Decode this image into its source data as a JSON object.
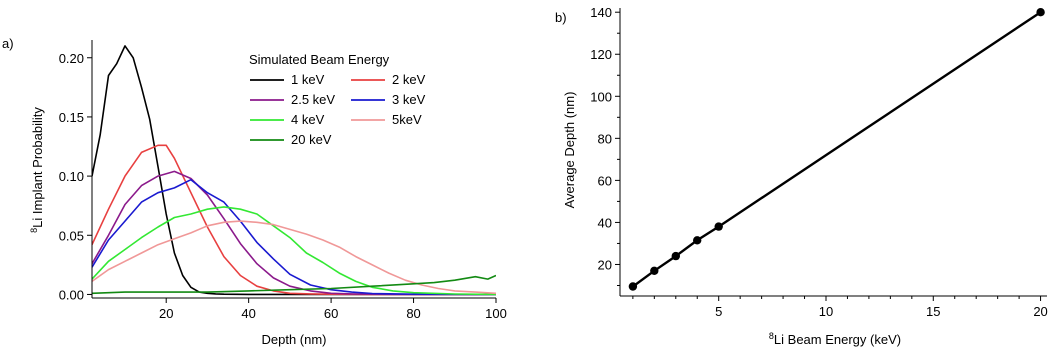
{
  "chart_data": [
    {
      "type": "line",
      "panel_label": "a)",
      "xlabel": "Depth (nm)",
      "ylabel": "Li Implant Probability",
      "ylabel_superscript": "8",
      "xlim": [
        2,
        100
      ],
      "ylim": [
        -0.003,
        0.215
      ],
      "xticks": [
        "20",
        "40",
        "60",
        "80",
        "100"
      ],
      "yticks": [
        "0.00",
        "0.05",
        "0.10",
        "0.15",
        "0.20"
      ],
      "legend_title": "Simulated Beam Energy",
      "legend_position": "top-right",
      "series": [
        {
          "name": "1 keV",
          "color": "#000000",
          "x": [
            2,
            4,
            6,
            8,
            10,
            12,
            14,
            16,
            18,
            20,
            22,
            24,
            26,
            28,
            30,
            32,
            34,
            40,
            50,
            60,
            80,
            100
          ],
          "y": [
            0.1,
            0.135,
            0.185,
            0.195,
            0.21,
            0.2,
            0.175,
            0.148,
            0.108,
            0.068,
            0.035,
            0.016,
            0.006,
            0.002,
            0.001,
            0.0005,
            0.0002,
            0.0,
            0.0,
            0.0,
            0.0,
            0.0
          ]
        },
        {
          "name": "2 keV",
          "color": "#e84040",
          "x": [
            2,
            6,
            10,
            14,
            18,
            20,
            22,
            26,
            30,
            34,
            38,
            42,
            46,
            50,
            55,
            60,
            70,
            80,
            100
          ],
          "y": [
            0.042,
            0.072,
            0.1,
            0.12,
            0.126,
            0.126,
            0.115,
            0.086,
            0.057,
            0.032,
            0.016,
            0.007,
            0.003,
            0.001,
            0.0005,
            0.0002,
            0.0,
            0.0,
            0.0
          ]
        },
        {
          "name": "2.5 keV",
          "color": "#8b1a8b",
          "x": [
            2,
            6,
            10,
            14,
            18,
            22,
            26,
            30,
            34,
            38,
            42,
            46,
            50,
            55,
            60,
            65,
            70,
            80,
            100
          ],
          "y": [
            0.026,
            0.05,
            0.076,
            0.092,
            0.1,
            0.104,
            0.098,
            0.084,
            0.064,
            0.043,
            0.026,
            0.014,
            0.007,
            0.003,
            0.001,
            0.0005,
            0.0002,
            0.0,
            0.0
          ]
        },
        {
          "name": "3 keV",
          "color": "#1a1ad0",
          "x": [
            2,
            6,
            10,
            14,
            18,
            22,
            26,
            30,
            34,
            38,
            42,
            46,
            50,
            55,
            60,
            65,
            70,
            80,
            100
          ],
          "y": [
            0.023,
            0.046,
            0.062,
            0.078,
            0.086,
            0.09,
            0.097,
            0.086,
            0.078,
            0.062,
            0.044,
            0.03,
            0.017,
            0.008,
            0.004,
            0.002,
            0.0008,
            0.0002,
            0.0
          ]
        },
        {
          "name": "4 keV",
          "color": "#33e833",
          "x": [
            2,
            6,
            10,
            14,
            18,
            22,
            26,
            30,
            34,
            38,
            42,
            46,
            50,
            54,
            58,
            62,
            66,
            70,
            75,
            80,
            90,
            100
          ],
          "y": [
            0.013,
            0.028,
            0.038,
            0.048,
            0.057,
            0.065,
            0.068,
            0.072,
            0.074,
            0.072,
            0.068,
            0.058,
            0.048,
            0.035,
            0.027,
            0.018,
            0.011,
            0.006,
            0.003,
            0.0015,
            0.0004,
            0.0
          ]
        },
        {
          "name": "5keV",
          "color": "#f09898",
          "x": [
            2,
            6,
            10,
            14,
            18,
            22,
            26,
            30,
            34,
            38,
            42,
            46,
            50,
            54,
            58,
            62,
            66,
            70,
            74,
            78,
            82,
            86,
            90,
            95,
            100
          ],
          "y": [
            0.011,
            0.021,
            0.028,
            0.035,
            0.042,
            0.047,
            0.052,
            0.058,
            0.061,
            0.062,
            0.061,
            0.059,
            0.055,
            0.051,
            0.046,
            0.04,
            0.032,
            0.025,
            0.018,
            0.012,
            0.008,
            0.005,
            0.003,
            0.002,
            0.001
          ]
        },
        {
          "name": "20 keV",
          "color": "#138a13",
          "x": [
            2,
            10,
            20,
            30,
            40,
            50,
            60,
            70,
            80,
            85,
            90,
            95,
            98,
            100
          ],
          "y": [
            0.001,
            0.002,
            0.002,
            0.002,
            0.003,
            0.004,
            0.005,
            0.007,
            0.009,
            0.01,
            0.012,
            0.015,
            0.013,
            0.016
          ]
        }
      ]
    },
    {
      "type": "line",
      "panel_label": "b)",
      "xlabel": "Li Beam Energy (keV)",
      "xlabel_superscript": "8",
      "ylabel": "Average Depth (nm)",
      "xlim": [
        0.4,
        20.3
      ],
      "ylim": [
        5,
        142
      ],
      "xticks": [
        "5",
        "10",
        "15",
        "20"
      ],
      "yticks": [
        "20",
        "40",
        "60",
        "80",
        "100",
        "120",
        "140"
      ],
      "series": [
        {
          "color": "#000000",
          "marker": "circle",
          "x": [
            1,
            2,
            3,
            4,
            5,
            20
          ],
          "y": [
            9.5,
            17,
            24,
            31.5,
            38,
            140
          ]
        }
      ]
    }
  ]
}
